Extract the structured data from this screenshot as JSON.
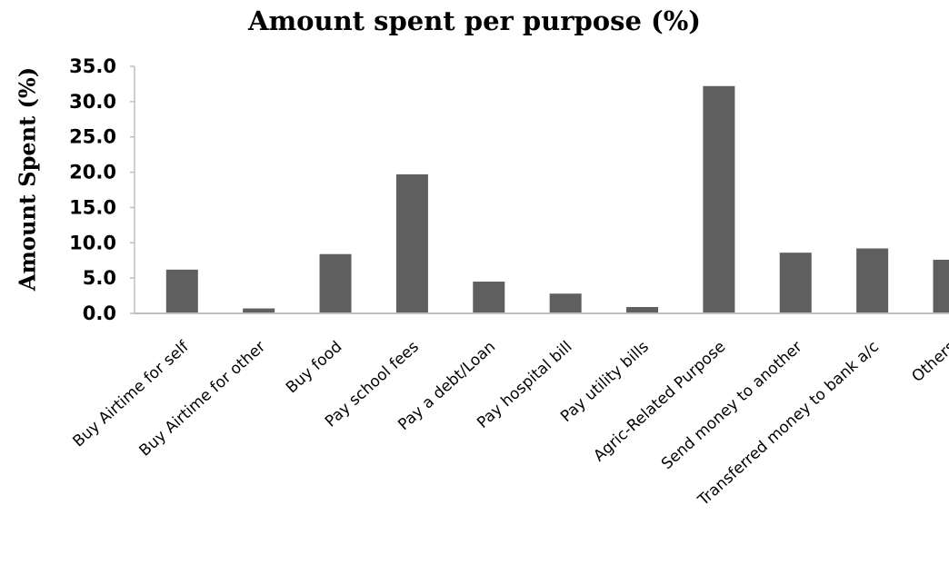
{
  "chart_data": {
    "type": "bar",
    "title": "Amount spent per purpose (%)",
    "xlabel": "",
    "ylabel": "Amount Spent (%)",
    "ylim": [
      0,
      35
    ],
    "yticks": [
      "0.0",
      "5.0",
      "10.0",
      "15.0",
      "20.0",
      "25.0",
      "30.0",
      "35.0"
    ],
    "categories": [
      "Buy Airtime for self",
      "Buy Airtime for other",
      "Buy food",
      "Pay school fees",
      "Pay a debt/Loan",
      "Pay hospital bill",
      "Pay utility bills",
      "Agric-Related Purpose",
      "Send money to another",
      "Transferred money to bank a/c",
      "Others"
    ],
    "values": [
      6.2,
      0.7,
      8.4,
      19.7,
      4.5,
      2.8,
      0.9,
      32.2,
      8.6,
      9.2,
      7.6
    ],
    "grid": false,
    "legend": "none",
    "bar_color": "#5f5f5f",
    "axis_color": "#bfbfbf"
  }
}
